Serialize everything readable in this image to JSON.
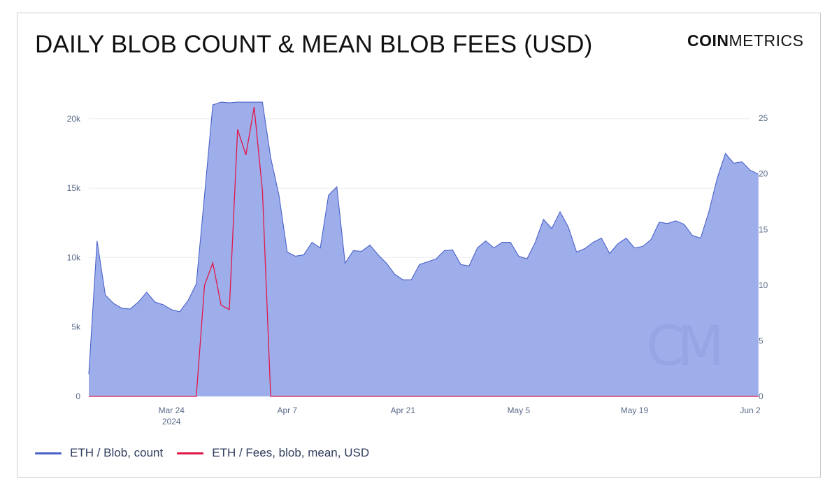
{
  "header": {
    "title": "DAILY BLOB COUNT & MEAN BLOB FEES (USD)",
    "brand_bold": "COIN",
    "brand_light": "METRICS"
  },
  "colors": {
    "count_fill": "#9eaeea",
    "count_line": "#4a61c9",
    "fees_line": "#e0174a",
    "grid": "#ececec",
    "watermark": "#8c9ede"
  },
  "chart_data": {
    "type": "area",
    "title": "DAILY BLOB COUNT & MEAN BLOB FEES (USD)",
    "x_start": "2024-03-14",
    "x_end": "2024-06-02",
    "x_ticks": [
      {
        "label": "Mar 24",
        "sublabel": "2024",
        "date": "2024-03-24"
      },
      {
        "label": "Apr 7",
        "sublabel": "",
        "date": "2024-04-07"
      },
      {
        "label": "Apr 21",
        "sublabel": "",
        "date": "2024-04-21"
      },
      {
        "label": "May 5",
        "sublabel": "",
        "date": "2024-05-05"
      },
      {
        "label": "May 19",
        "sublabel": "",
        "date": "2024-05-19"
      },
      {
        "label": "Jun 2",
        "sublabel": "",
        "date": "2024-06-02"
      }
    ],
    "y_left": {
      "min": 0,
      "max": 21000,
      "ticks": [
        0,
        5000,
        10000,
        15000,
        20000
      ],
      "tick_labels": [
        "0",
        "5k",
        "10k",
        "15k",
        "20k"
      ]
    },
    "y_right": {
      "min": 0,
      "max": 26.2,
      "ticks": [
        0,
        5,
        10,
        15,
        20,
        25
      ],
      "tick_labels": [
        "0",
        "5",
        "10",
        "15",
        "20",
        "25"
      ]
    },
    "grid": true,
    "legend_position": "bottom-left",
    "series": [
      {
        "name": "ETH / Blob, count",
        "axis": "left",
        "values": [
          1600,
          11200,
          7300,
          6700,
          6350,
          6300,
          6800,
          7500,
          6800,
          6600,
          6250,
          6100,
          6900,
          8100,
          14500,
          21000,
          21200,
          21150,
          21200,
          21200,
          21200,
          21200,
          17200,
          14500,
          10400,
          10100,
          10200,
          11100,
          10700,
          14500,
          15100,
          9600,
          10500,
          10450,
          10900,
          10200,
          9600,
          8800,
          8400,
          8400,
          9500,
          9700,
          9900,
          10500,
          10550,
          9500,
          9400,
          10700,
          11200,
          10700,
          11100,
          11100,
          10100,
          9900,
          11100,
          12750,
          12100,
          13300,
          12200,
          10400,
          10650,
          11100,
          11400,
          10300,
          11000,
          11400,
          10700,
          10800,
          11300,
          12550,
          12450,
          12650,
          12400,
          11600,
          11400,
          13300,
          15700,
          17500,
          16800,
          16900,
          16300,
          16000
        ]
      },
      {
        "name": "ETH / Fees, blob, mean, USD",
        "axis": "right",
        "values": [
          0,
          0,
          0,
          0,
          0,
          0,
          0,
          0,
          0,
          0,
          0,
          0,
          0,
          0,
          10,
          12,
          8.2,
          7.8,
          24,
          21.7,
          26,
          18.5,
          0,
          0,
          0,
          0,
          0,
          0,
          0,
          0,
          0,
          0,
          0,
          0,
          0,
          0,
          0,
          0,
          0,
          0,
          0,
          0,
          0,
          0,
          0,
          0,
          0,
          0,
          0,
          0,
          0,
          0,
          0,
          0,
          0,
          0,
          0,
          0,
          0,
          0,
          0,
          0,
          0,
          0,
          0,
          0,
          0,
          0,
          0,
          0,
          0,
          0,
          0,
          0,
          0,
          0,
          0,
          0,
          0,
          0,
          0,
          0
        ]
      }
    ]
  }
}
